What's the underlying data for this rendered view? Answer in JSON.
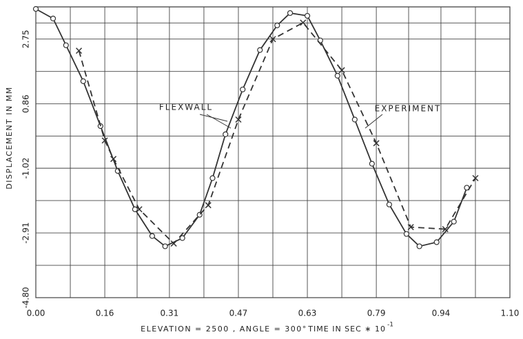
{
  "chart_data": {
    "type": "line",
    "xlabel_prefix": "ELEVATION = 2500 , ANGLE = 300°",
    "xlabel": "TIME IN SEC ∗ 10",
    "xlabel_exponent": "-1",
    "ylabel": "DISPLACEMENT IN MM",
    "annotations": [
      "FLEXWALL",
      "EXPERIMENT"
    ],
    "xlim": [
      0,
      1.1
    ],
    "xticks": [
      {
        "value": 0,
        "label": "0.00"
      },
      0.16,
      0.31,
      0.47,
      0.63,
      0.79,
      0.94,
      {
        "value": 1.1,
        "label": "1.10"
      }
    ],
    "ylim": [
      -4.8,
      3.69
    ],
    "yticks": [
      {
        "value": -4.8,
        "label": "-4.80"
      },
      -2.91,
      -1.02,
      0.86,
      2.75
    ],
    "grid": true,
    "minor_grid": true,
    "series": [
      {
        "name": "FLEXWALL",
        "color": "#333333",
        "style": "solid",
        "marker": "circle",
        "x": [
          0.0,
          0.04,
          0.07,
          0.11,
          0.15,
          0.19,
          0.23,
          0.27,
          0.3,
          0.34,
          0.38,
          0.41,
          0.44,
          0.48,
          0.52,
          0.56,
          0.59,
          0.63,
          0.66,
          0.7,
          0.74,
          0.78,
          0.82,
          0.86,
          0.89,
          0.93,
          0.97,
          1.0
        ],
        "values": [
          3.63,
          3.35,
          2.57,
          1.52,
          0.21,
          -1.1,
          -2.22,
          -3.0,
          -3.3,
          -3.06,
          -2.38,
          -1.31,
          -0.03,
          1.28,
          2.43,
          3.15,
          3.51,
          3.43,
          2.71,
          1.68,
          0.4,
          -0.89,
          -2.08,
          -2.94,
          -3.3,
          -3.18,
          -2.58,
          -1.59
        ]
      },
      {
        "name": "EXPERIMENT",
        "color": "#333333",
        "style": "dashed",
        "marker": "x",
        "x": [
          0.1,
          0.16,
          0.18,
          0.24,
          0.32,
          0.4,
          0.47,
          0.55,
          0.62,
          0.71,
          0.79,
          0.87,
          0.95,
          1.02
        ],
        "values": [
          2.41,
          -0.21,
          -0.75,
          -2.22,
          -3.22,
          -2.1,
          0.4,
          2.75,
          3.23,
          1.84,
          -0.29,
          -2.74,
          -2.8,
          -1.31
        ]
      }
    ]
  }
}
